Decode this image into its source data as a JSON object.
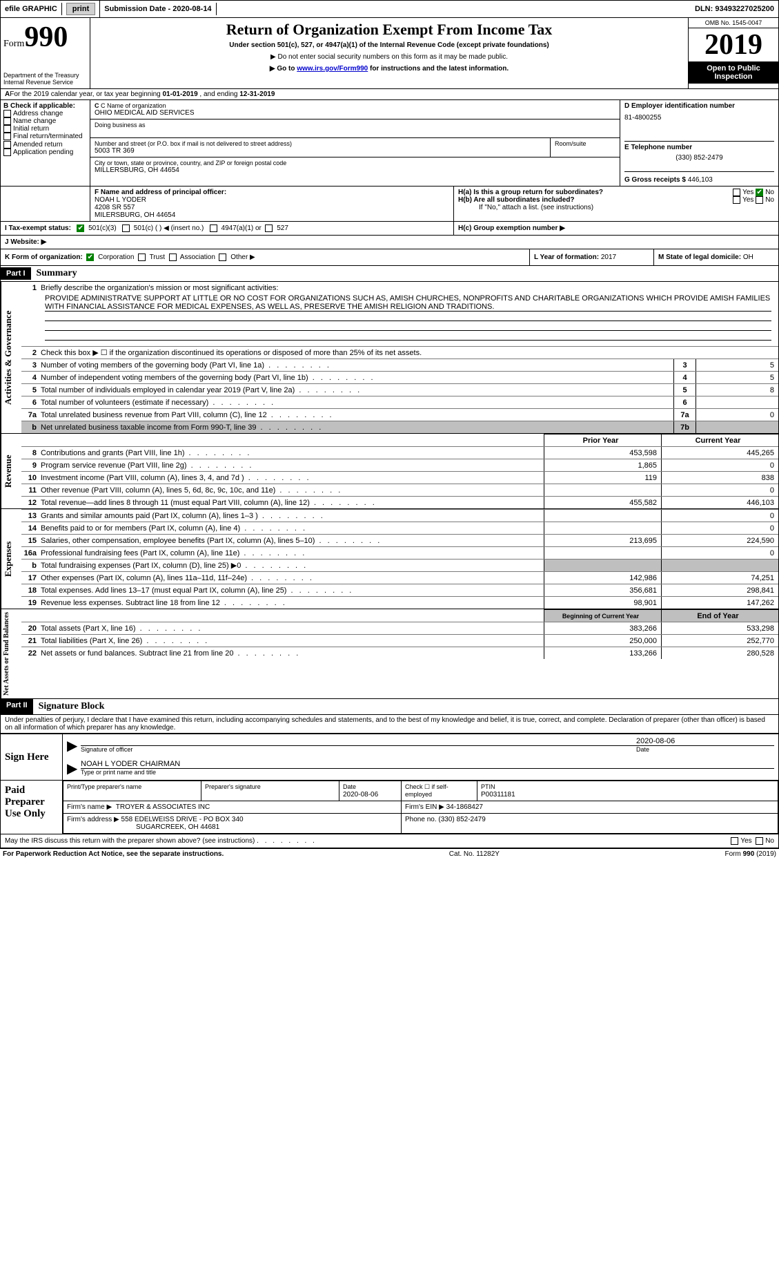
{
  "top_bar": {
    "efile": "efile GRAPHIC",
    "print": "print",
    "submission_label": "Submission Date - ",
    "submission_date": "2020-08-14",
    "dln_label": "DLN: ",
    "dln": "93493227025200"
  },
  "header": {
    "form_word": "Form",
    "form_num": "990",
    "dept": "Department of the Treasury",
    "irs": "Internal Revenue Service",
    "title": "Return of Organization Exempt From Income Tax",
    "subtitle": "Under section 501(c), 527, or 4947(a)(1) of the Internal Revenue Code (except private foundations)",
    "note1": "▶ Do not enter social security numbers on this form as it may be made public.",
    "note2_pre": "▶ Go to ",
    "note2_link": "www.irs.gov/Form990",
    "note2_post": " for instructions and the latest information.",
    "omb": "OMB No. 1545-0047",
    "year": "2019",
    "open": "Open to Public Inspection"
  },
  "line_a": {
    "text_pre": "For the 2019 calendar year, or tax year beginning ",
    "begin": "01-01-2019",
    "mid": " , and ending ",
    "end": "12-31-2019"
  },
  "box_b": {
    "label": "B Check if applicable:",
    "opts": [
      "Address change",
      "Name change",
      "Initial return",
      "Final return/terminated",
      "Amended return",
      "Application pending"
    ]
  },
  "box_c": {
    "label": "C Name of organization",
    "org": "OHIO MEDICAL AID SERVICES",
    "dba_label": "Doing business as",
    "dba": "",
    "addr_label": "Number and street (or P.O. box if mail is not delivered to street address)",
    "room_label": "Room/suite",
    "addr": "5003 TR 369",
    "city_label": "City or town, state or province, country, and ZIP or foreign postal code",
    "city": "MILLERSBURG, OH  44654"
  },
  "box_d": {
    "label": "D Employer identification number",
    "ein": "81-4800255"
  },
  "box_e": {
    "label": "E Telephone number",
    "phone": "(330) 852-2479"
  },
  "box_g": {
    "label": "G Gross receipts $",
    "val": "446,103"
  },
  "box_f": {
    "label": "F  Name and address of principal officer:",
    "name": "NOAH L YODER",
    "addr1": "4208 SR 557",
    "addr2": "MILERSBURG, OH  44654"
  },
  "box_h": {
    "a_label": "H(a)  Is this a group return for subordinates?",
    "b_label": "H(b)  Are all subordinates included?",
    "b_note": "If \"No,\" attach a list. (see instructions)",
    "c_label": "H(c)  Group exemption number ▶",
    "yes": "Yes",
    "no": "No"
  },
  "box_i": {
    "label": "I  Tax-exempt status:",
    "o1": "501(c)(3)",
    "o2": "501(c) (  ) ◀ (insert no.)",
    "o3": "4947(a)(1) or",
    "o4": "527"
  },
  "box_j": {
    "label": "J   Website: ▶"
  },
  "box_k": {
    "label": "K Form of organization:",
    "o1": "Corporation",
    "o2": "Trust",
    "o3": "Association",
    "o4": "Other ▶"
  },
  "box_l": {
    "label": "L Year of formation: ",
    "val": "2017"
  },
  "box_m": {
    "label": "M State of legal domicile: ",
    "val": "OH"
  },
  "part1": {
    "num": "Part I",
    "title": "Summary",
    "vert_ag": "Activities & Governance",
    "vert_rev": "Revenue",
    "vert_exp": "Expenses",
    "vert_na": "Net Assets or Fund Balances",
    "l1_label": "Briefly describe the organization's mission or most significant activities:",
    "l1_text": "PROVIDE ADMINISTRATVE SUPPORT AT LITTLE OR NO COST FOR ORGANIZATIONS SUCH AS, AMISH CHURCHES, NONPROFITS AND CHARITABLE ORGANIZATIONS WHICH PROVIDE AMISH FAMILIES WITH FINANCIAL ASSISTANCE FOR MEDICAL EXPENSES, AS WELL AS, PRESERVE THE AMISH RELIGION AND TRADITIONS.",
    "l2": "Check this box ▶ ☐  if the organization discontinued its operations or disposed of more than 25% of its net assets.",
    "lines_single": [
      {
        "n": "3",
        "t": "Number of voting members of the governing body (Part VI, line 1a)",
        "box": "3",
        "v": "5"
      },
      {
        "n": "4",
        "t": "Number of independent voting members of the governing body (Part VI, line 1b)",
        "box": "4",
        "v": "5"
      },
      {
        "n": "5",
        "t": "Total number of individuals employed in calendar year 2019 (Part V, line 2a)",
        "box": "5",
        "v": "8"
      },
      {
        "n": "6",
        "t": "Total number of volunteers (estimate if necessary)",
        "box": "6",
        "v": ""
      },
      {
        "n": "7a",
        "t": "Total unrelated business revenue from Part VIII, column (C), line 12",
        "box": "7a",
        "v": "0"
      },
      {
        "n": "b",
        "t": "Net unrelated business taxable income from Form 990-T, line 39",
        "box": "7b",
        "v": "",
        "grey": true
      }
    ],
    "col_prior": "Prior Year",
    "col_current": "Current Year",
    "rev_lines": [
      {
        "n": "8",
        "t": "Contributions and grants (Part VIII, line 1h)",
        "p": "453,598",
        "c": "445,265"
      },
      {
        "n": "9",
        "t": "Program service revenue (Part VIII, line 2g)",
        "p": "1,865",
        "c": "0"
      },
      {
        "n": "10",
        "t": "Investment income (Part VIII, column (A), lines 3, 4, and 7d )",
        "p": "119",
        "c": "838"
      },
      {
        "n": "11",
        "t": "Other revenue (Part VIII, column (A), lines 5, 6d, 8c, 9c, 10c, and 11e)",
        "p": "",
        "c": "0"
      },
      {
        "n": "12",
        "t": "Total revenue—add lines 8 through 11 (must equal Part VIII, column (A), line 12)",
        "p": "455,582",
        "c": "446,103"
      }
    ],
    "exp_lines": [
      {
        "n": "13",
        "t": "Grants and similar amounts paid (Part IX, column (A), lines 1–3 )",
        "p": "",
        "c": "0"
      },
      {
        "n": "14",
        "t": "Benefits paid to or for members (Part IX, column (A), line 4)",
        "p": "",
        "c": "0"
      },
      {
        "n": "15",
        "t": "Salaries, other compensation, employee benefits (Part IX, column (A), lines 5–10)",
        "p": "213,695",
        "c": "224,590"
      },
      {
        "n": "16a",
        "t": "Professional fundraising fees (Part IX, column (A), line 11e)",
        "p": "",
        "c": "0"
      },
      {
        "n": "b",
        "t": "Total fundraising expenses (Part IX, column (D), line 25) ▶0",
        "p": "GREY",
        "c": "GREY"
      },
      {
        "n": "17",
        "t": "Other expenses (Part IX, column (A), lines 11a–11d, 11f–24e)",
        "p": "142,986",
        "c": "74,251"
      },
      {
        "n": "18",
        "t": "Total expenses. Add lines 13–17 (must equal Part IX, column (A), line 25)",
        "p": "356,681",
        "c": "298,841"
      },
      {
        "n": "19",
        "t": "Revenue less expenses. Subtract line 18 from line 12",
        "p": "98,901",
        "c": "147,262"
      }
    ],
    "col_boy": "Beginning of Current Year",
    "col_eoy": "End of Year",
    "na_lines": [
      {
        "n": "20",
        "t": "Total assets (Part X, line 16)",
        "p": "383,266",
        "c": "533,298"
      },
      {
        "n": "21",
        "t": "Total liabilities (Part X, line 26)",
        "p": "250,000",
        "c": "252,770"
      },
      {
        "n": "22",
        "t": "Net assets or fund balances. Subtract line 21 from line 20",
        "p": "133,266",
        "c": "280,528"
      }
    ]
  },
  "part2": {
    "num": "Part II",
    "title": "Signature Block",
    "decl": "Under penalties of perjury, I declare that I have examined this return, including accompanying schedules and statements, and to the best of my knowledge and belief, it is true, correct, and complete. Declaration of preparer (other than officer) is based on all information of which preparer has any knowledge.",
    "sign_here": "Sign Here",
    "sig_officer": "Signature of officer",
    "sig_date": "2020-08-06",
    "date_label": "Date",
    "officer_name": "NOAH L YODER  CHAIRMAN",
    "type_label": "Type or print name and title",
    "paid": "Paid Preparer Use Only",
    "prep_name_label": "Print/Type preparer's name",
    "prep_sig_label": "Preparer's signature",
    "prep_date_label": "Date",
    "prep_date": "2020-08-06",
    "check_self": "Check ☐ if self-employed",
    "ptin_label": "PTIN",
    "ptin": "P00311181",
    "firm_name_label": "Firm's name    ▶",
    "firm_name": "TROYER & ASSOCIATES INC",
    "firm_ein_label": "Firm's EIN ▶",
    "firm_ein": "34-1868427",
    "firm_addr_label": "Firm's address ▶",
    "firm_addr": "558 EDELWEISS DRIVE - PO BOX 340",
    "firm_city": "SUGARCREEK, OH  44681",
    "phone_label": "Phone no.",
    "phone": "(330) 852-2479",
    "discuss": "May the IRS discuss this return with the preparer shown above? (see instructions)",
    "yes": "Yes",
    "no": "No"
  },
  "footer": {
    "left": "For Paperwork Reduction Act Notice, see the separate instructions.",
    "mid": "Cat. No. 11282Y",
    "right_pre": "Form ",
    "right_form": "990",
    "right_post": " (2019)"
  }
}
